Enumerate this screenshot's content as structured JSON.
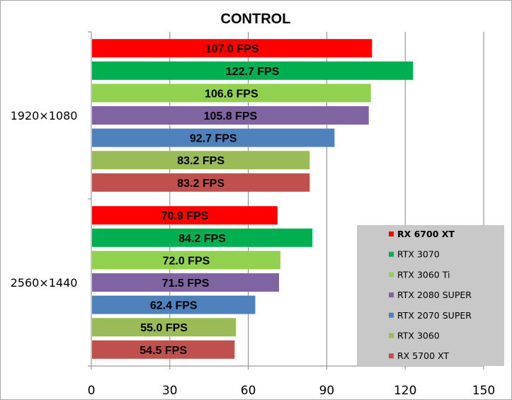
{
  "chart_data": {
    "type": "bar",
    "orientation": "horizontal",
    "title": "CONTROL",
    "categories": [
      "1920×1080",
      "2560×1440"
    ],
    "series": [
      {
        "name": "RX 6700 XT",
        "color": "#ff0000",
        "values": [
          107.0,
          70.9
        ],
        "labels": [
          "107.0 FPS",
          "70.9 FPS"
        ]
      },
      {
        "name": "RTX 3070",
        "color": "#00b050",
        "values": [
          122.7,
          84.2
        ],
        "labels": [
          "122.7 FPS",
          "84.2 FPS"
        ]
      },
      {
        "name": "RTX 3060 Ti",
        "color": "#92d050",
        "values": [
          106.6,
          72.0
        ],
        "labels": [
          "106.6 FPS",
          "72.0 FPS"
        ]
      },
      {
        "name": "RTX 2080 SUPER",
        "color": "#8064a2",
        "values": [
          105.8,
          71.5
        ],
        "labels": [
          "105.8 FPS",
          "71.5 FPS"
        ]
      },
      {
        "name": "RTX 2070 SUPER",
        "color": "#4f81bd",
        "values": [
          92.7,
          62.4
        ],
        "labels": [
          "92.7 FPS",
          "62.4 FPS"
        ]
      },
      {
        "name": "RTX 3060",
        "color": "#9bbb59",
        "values": [
          83.2,
          55.0
        ],
        "labels": [
          "83.2 FPS",
          "55.0 FPS"
        ]
      },
      {
        "name": "RX 5700 XT",
        "color": "#c0504d",
        "values": [
          83.2,
          54.5
        ],
        "labels": [
          "83.2 FPS",
          "54.5 FPS"
        ]
      }
    ],
    "xlim": [
      0,
      150
    ],
    "xticks": [
      "0",
      "30",
      "60",
      "90",
      "120",
      "150"
    ],
    "grid": "vertical",
    "legend": "bottom-right",
    "legend_bold_first": true,
    "plot_background": "#ffffff",
    "legend_background": "#c8c8c8"
  }
}
